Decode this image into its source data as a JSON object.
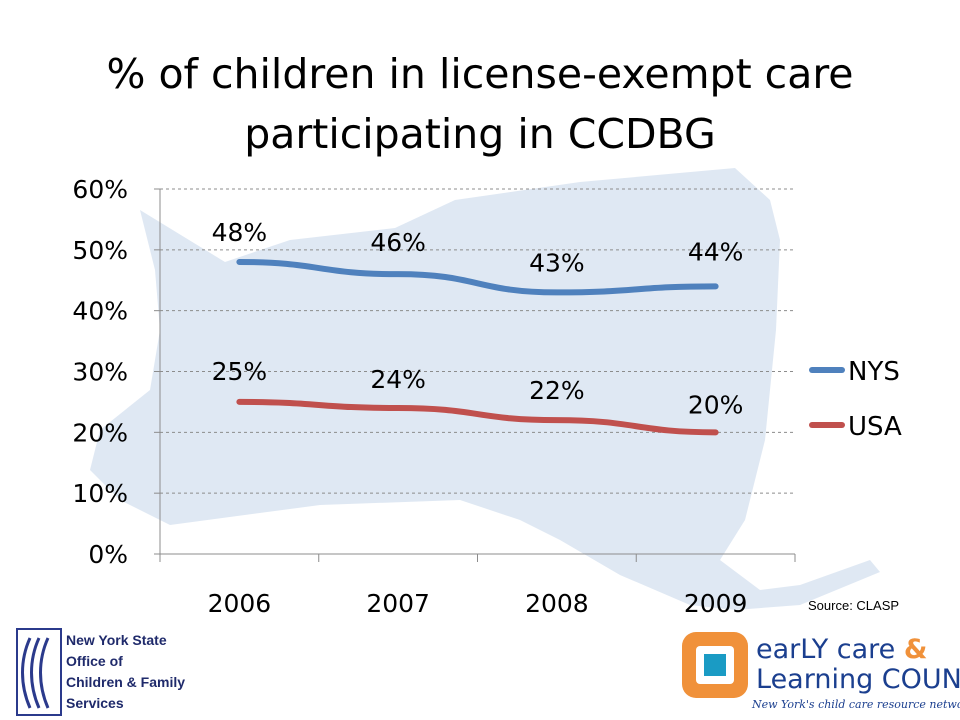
{
  "slide": {
    "title": "% of children in license-exempt care participating in CCDBG",
    "source": "Source: CLASP"
  },
  "logos": {
    "ocfs": {
      "lines": [
        "New York State",
        "Office of",
        "Children & Family",
        "Services"
      ]
    },
    "eclc": {
      "line1": "earLY care",
      "amp": "&",
      "line2": "Learning COUNCIL",
      "tagline": "New York's child care resource network"
    }
  },
  "colors": {
    "nys": "#4f81bd",
    "usa": "#c0504d",
    "grid": "#8c8c8c",
    "map": "#dce6f2",
    "ocfs_blue": "#2b3a8c",
    "eclc_orange": "#f0913a",
    "eclc_blue": "#1b3f8f"
  },
  "chart_data": {
    "type": "line",
    "title": "% of children in license-exempt care participating in CCDBG",
    "xlabel": "",
    "ylabel": "",
    "categories": [
      "2006",
      "2007",
      "2008",
      "2009"
    ],
    "ylim": [
      0,
      60
    ],
    "yticks": [
      "0%",
      "10%",
      "20%",
      "30%",
      "40%",
      "50%",
      "60%"
    ],
    "ytick_values": [
      0,
      10,
      20,
      30,
      40,
      50,
      60
    ],
    "grid": true,
    "legend": "right",
    "series": [
      {
        "name": "NYS",
        "values": [
          48,
          46,
          43,
          44
        ],
        "labels": [
          "48%",
          "46%",
          "43%",
          "44%"
        ]
      },
      {
        "name": "USA",
        "values": [
          25,
          24,
          22,
          20
        ],
        "labels": [
          "25%",
          "24%",
          "22%",
          "20%"
        ]
      }
    ]
  }
}
